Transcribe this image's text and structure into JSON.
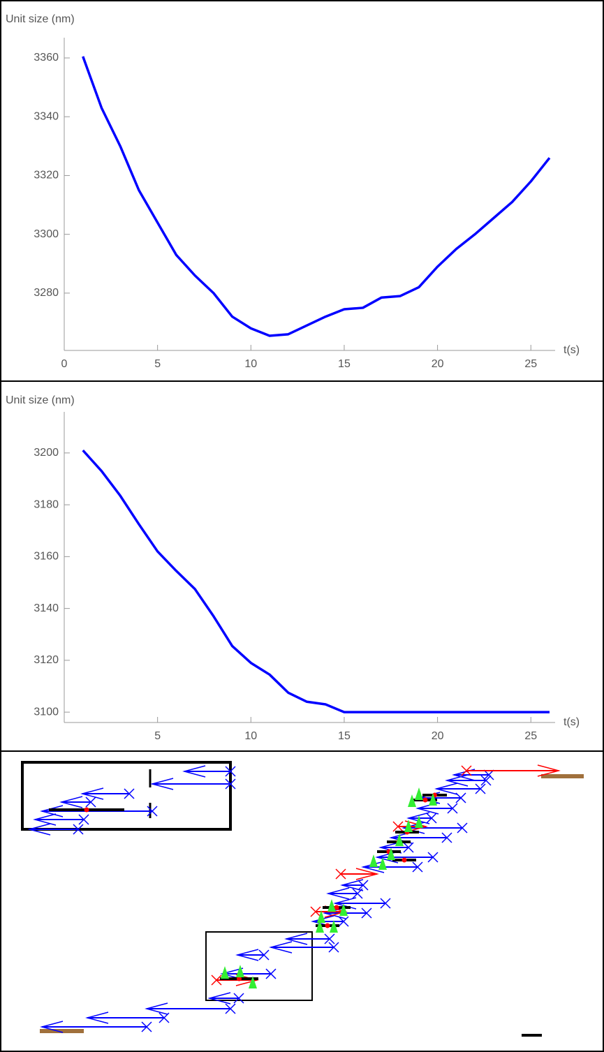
{
  "chart_data": [
    {
      "type": "line",
      "y_label": "Unit size (nm)",
      "x_label": "t(s)",
      "color": "#0000ff",
      "x": [
        1,
        2,
        3,
        4,
        5,
        6,
        7,
        8,
        9,
        10,
        11,
        12,
        13,
        14,
        15,
        16,
        17,
        18,
        19,
        20,
        21,
        22,
        23,
        24,
        25,
        26
      ],
      "values": [
        3360.5,
        3343,
        3330,
        3315,
        3304,
        3293,
        3286,
        3280,
        3272,
        3268,
        3265.5,
        3266,
        3269,
        3272,
        3274.5,
        3275,
        3278.5,
        3279,
        3282,
        3289,
        3295,
        3300,
        3305.5,
        3311,
        3318,
        3326
      ],
      "xlim": [
        0,
        26.3
      ],
      "ylim": [
        3260.5,
        3365.7
      ],
      "xticks": [
        0,
        5,
        10,
        15,
        20,
        25
      ],
      "yticks": [
        3280,
        3300,
        3320,
        3340,
        3360
      ]
    },
    {
      "type": "line",
      "y_label": "Unit size (nm)",
      "x_label": "t(s)",
      "color": "#0000ff",
      "x": [
        1,
        2,
        3,
        4,
        5,
        6,
        7,
        8,
        9,
        10,
        11,
        12,
        13,
        14,
        15,
        16,
        17,
        18,
        19,
        20,
        21,
        22,
        23,
        24,
        25,
        26
      ],
      "values": [
        3201,
        3193,
        3183.5,
        3172.5,
        3162,
        3154.5,
        3147.5,
        3137,
        3125.5,
        3119,
        3114.5,
        3107.5,
        3104,
        3103,
        3100,
        3100,
        3100,
        3100,
        3100,
        3100,
        3100,
        3100,
        3100,
        3100,
        3100,
        3100
      ],
      "xlim": [
        0,
        26.3
      ],
      "ylim": [
        3096,
        3214.5
      ],
      "xticks": [
        5,
        10,
        15,
        20,
        25
      ],
      "yticks": [
        3100,
        3120,
        3140,
        3160,
        3180,
        3200
      ]
    }
  ]
}
